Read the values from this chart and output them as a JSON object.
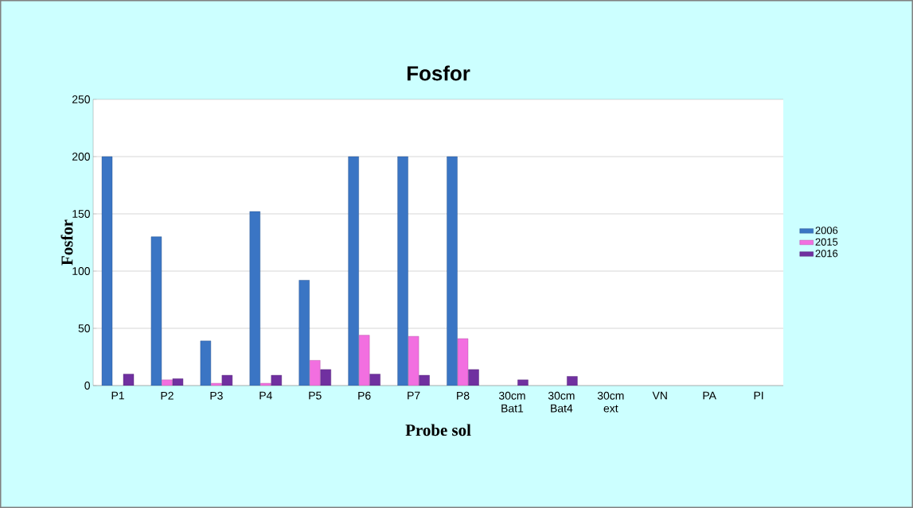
{
  "chart_data": {
    "type": "bar",
    "title": "Fosfor",
    "xlabel": "Probe sol",
    "ylabel": "Fosfor",
    "categories": [
      "P1",
      "P2",
      "P3",
      "P4",
      "P5",
      "P6",
      "P7",
      "P8",
      "30cm Bat1",
      "30cm Bat4",
      "30cm ext",
      "VN",
      "PA",
      "PI"
    ],
    "series": [
      {
        "name": "2006",
        "color": "#3a75c4",
        "values": [
          200,
          130,
          39,
          152,
          92,
          200,
          200,
          200,
          null,
          null,
          null,
          null,
          null,
          null
        ]
      },
      {
        "name": "2015",
        "color": "#f26fe0",
        "values": [
          null,
          5,
          2,
          2,
          22,
          44,
          43,
          41,
          null,
          null,
          null,
          null,
          null,
          null
        ]
      },
      {
        "name": "2016",
        "color": "#7030a0",
        "values": [
          10,
          6,
          9,
          9,
          14,
          10,
          9,
          14,
          5,
          8,
          null,
          null,
          null,
          null
        ]
      }
    ],
    "ylim": [
      0,
      250
    ],
    "yticks": [
      0,
      50,
      100,
      150,
      200,
      250
    ],
    "grid": "y",
    "legend": "right"
  }
}
